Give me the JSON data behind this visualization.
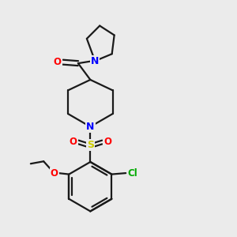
{
  "background_color": "#ebebeb",
  "bond_color": "#1a1a1a",
  "N_color": "#0000ff",
  "O_color": "#ff0000",
  "S_color": "#cccc00",
  "Cl_color": "#00aa00",
  "line_width": 1.6,
  "figsize": [
    3.0,
    3.0
  ],
  "dpi": 100,
  "xlim": [
    0,
    10
  ],
  "ylim": [
    0,
    10
  ]
}
